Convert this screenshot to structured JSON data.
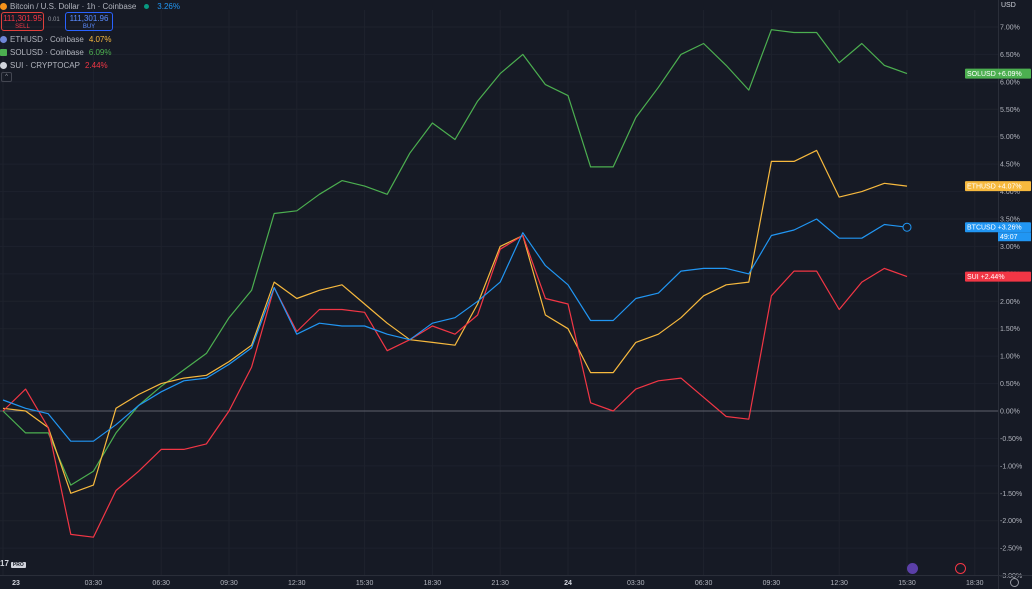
{
  "header": {
    "title": "Bitcoin / U.S. Dollar · 1h · Coinbase",
    "change": "3.26%",
    "sell_price": "111,301.95",
    "sell_label": "SELL",
    "spread": "0.01",
    "buy_price": "111,301.96",
    "buy_label": "BUY",
    "currency": "USD",
    "collapse_glyph": "^",
    "brand": "17",
    "brand_tag": "PRO"
  },
  "legend": [
    {
      "name": "ETHUSD · Coinbase",
      "value": "4.07%",
      "color": "#f7b93e",
      "icon": "ethereum-icon"
    },
    {
      "name": "SOLUSD · Coinbase",
      "value": "6.09%",
      "color": "#4caf50",
      "icon": "solana-icon"
    },
    {
      "name": "SUI · CRYPTOCAP",
      "value": "2.44%",
      "color": "#f23645",
      "icon": "sui-icon"
    }
  ],
  "colors": {
    "background": "#161a25",
    "btc": "#2196f3",
    "eth": "#f7b93e",
    "sol": "#4caf50",
    "sui": "#f23645",
    "zero_line": "#5d606b"
  },
  "chart_data": {
    "type": "line",
    "x_tick_labels": [
      "23",
      "03:30",
      "06:30",
      "09:30",
      "12:30",
      "15:30",
      "18:30",
      "21:30",
      "24",
      "03:30",
      "06:30",
      "09:30",
      "12:30",
      "15:30",
      "18:30"
    ],
    "x_tick_index": [
      0,
      4,
      7,
      10,
      13,
      16,
      19,
      22,
      25,
      28,
      31,
      34,
      37,
      40,
      43
    ],
    "y_ticks": [
      "7.00%",
      "6.50%",
      "6.00%",
      "5.50%",
      "5.00%",
      "4.50%",
      "4.00%",
      "3.50%",
      "3.00%",
      "2.50%",
      "2.00%",
      "1.50%",
      "1.00%",
      "0.50%",
      "0.00%",
      "-0.50%",
      "-1.00%",
      "-1.50%",
      "-2.00%",
      "-2.50%",
      "-3.00%"
    ],
    "ylim": [
      -3.0,
      7.0
    ],
    "grid": true,
    "series": [
      {
        "name": "BTCUSD",
        "color": "#2196f3",
        "last_label": "+3.26%",
        "countdown": "49:07",
        "values": [
          0.2,
          0.05,
          -0.05,
          -0.55,
          -0.55,
          -0.25,
          0.1,
          0.35,
          0.55,
          0.6,
          0.85,
          1.15,
          2.25,
          1.4,
          1.6,
          1.55,
          1.55,
          1.4,
          1.3,
          1.6,
          1.7,
          2.0,
          2.35,
          3.25,
          2.65,
          2.3,
          1.65,
          1.65,
          2.05,
          2.15,
          2.55,
          2.6,
          2.6,
          2.5,
          3.2,
          3.3,
          3.5,
          3.15,
          3.15,
          3.4,
          3.35
        ]
      },
      {
        "name": "ETHUSD",
        "color": "#f7b93e",
        "last_label": "+4.07%",
        "values": [
          0.05,
          0.0,
          -0.3,
          -1.5,
          -1.35,
          0.05,
          0.3,
          0.5,
          0.6,
          0.65,
          0.9,
          1.2,
          2.35,
          2.05,
          2.2,
          2.3,
          1.95,
          1.6,
          1.3,
          1.25,
          1.2,
          1.95,
          3.0,
          3.2,
          1.75,
          1.5,
          0.7,
          0.7,
          1.25,
          1.4,
          1.7,
          2.1,
          2.3,
          2.35,
          4.55,
          4.55,
          4.75,
          3.9,
          4.0,
          4.15,
          4.1
        ]
      },
      {
        "name": "SOLUSD",
        "color": "#4caf50",
        "last_label": "+6.09%",
        "values": [
          0.0,
          -0.4,
          -0.4,
          -1.35,
          -1.1,
          -0.4,
          0.1,
          0.45,
          0.75,
          1.05,
          1.7,
          2.2,
          3.6,
          3.65,
          3.95,
          4.2,
          4.1,
          3.95,
          4.7,
          5.25,
          4.95,
          5.65,
          6.15,
          6.5,
          5.95,
          5.75,
          4.45,
          4.45,
          5.35,
          5.9,
          6.5,
          6.7,
          6.3,
          5.85,
          6.95,
          6.9,
          6.9,
          6.35,
          6.7,
          6.3,
          6.15
        ]
      },
      {
        "name": "SUI",
        "color": "#f23645",
        "last_label": "+2.44%",
        "values": [
          0.0,
          0.4,
          -0.3,
          -2.25,
          -2.3,
          -1.45,
          -1.1,
          -0.7,
          -0.7,
          -0.6,
          0.0,
          0.8,
          2.25,
          1.45,
          1.85,
          1.85,
          1.8,
          1.1,
          1.3,
          1.55,
          1.4,
          1.75,
          2.95,
          3.2,
          2.05,
          1.95,
          0.15,
          0.0,
          0.4,
          0.55,
          0.6,
          0.25,
          -0.1,
          -0.15,
          2.1,
          2.55,
          2.55,
          1.85,
          2.35,
          2.6,
          2.45
        ]
      }
    ]
  }
}
